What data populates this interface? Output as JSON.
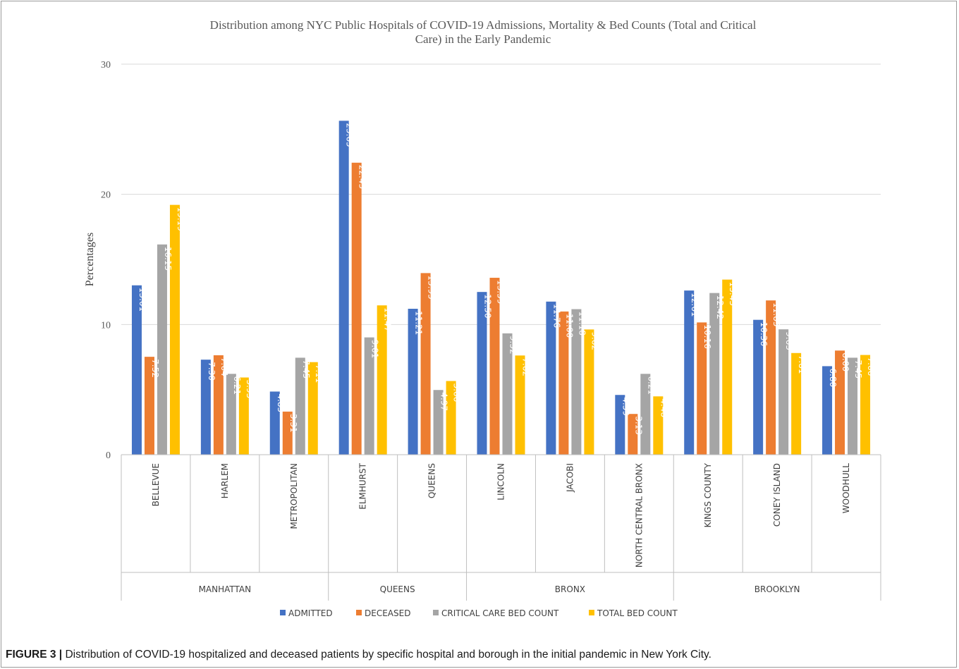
{
  "caption": {
    "figure_label": "FIGURE 3 |",
    "text": "Distribution of COVID-19 hospitalized and deceased patients by specific hospital and borough in the initial pandemic in New York City."
  },
  "chart_data": {
    "type": "bar",
    "title_lines": [
      "Distribution among NYC Public Hospitals of COVID-19 Admissions, Mortality & Bed Counts (Total and Critical",
      "Care) in the Early Pandemic"
    ],
    "ylabel": "Percentages",
    "xlabel": "",
    "ylim": [
      0,
      30
    ],
    "yticks": [
      0,
      10,
      20,
      30
    ],
    "grid": true,
    "legend_position": "bottom",
    "categories": [
      "BELLEVUE",
      "HARLEM",
      "METROPOLITAN",
      "ELMHURST",
      "QUEENS",
      "LINCOLN",
      "JACOBI",
      "NORTH CENTRAL BRONX",
      "KINGS COUNTY",
      "CONEY ISLAND",
      "WOODHULL"
    ],
    "groups": [
      {
        "name": "MANHATTAN",
        "count": 3
      },
      {
        "name": "QUEENS",
        "count": 2
      },
      {
        "name": "BRONX",
        "count": 3
      },
      {
        "name": "BROOKLYN",
        "count": 3
      }
    ],
    "series": [
      {
        "name": "ADMITTED",
        "color": "#4472C4",
        "values": [
          13.01,
          7.3,
          4.85,
          25.65,
          11.21,
          12.5,
          11.76,
          4.59,
          12.61,
          10.36,
          6.8
        ],
        "labels": [
          "13.01",
          "7.30",
          "4.85",
          "25.65",
          "11.21",
          "12.50",
          "11.76",
          "4.59",
          "12.61",
          "10.36",
          "6.80"
        ]
      },
      {
        "name": "DECEASED",
        "color": "#ED7D31",
        "values": [
          7.52,
          7.64,
          3.31,
          22.43,
          13.95,
          13.59,
          11.0,
          3.13,
          10.16,
          11.85,
          8.0
        ],
        "labels": [
          "7.52",
          "7.64",
          "3.31",
          "22.43",
          "13.95",
          "13.59",
          "11.00",
          "3.13",
          "10.16",
          "11.85",
          "8.00"
        ]
      },
      {
        "name": "CRITICAL CARE BED COUNT",
        "color": "#A5A5A5",
        "values": [
          16.15,
          6.21,
          7.45,
          9.01,
          4.97,
          9.32,
          11.18,
          6.21,
          12.42,
          9.63,
          7.45
        ],
        "labels": [
          "16.15",
          "6.21",
          "7.45",
          "9.01",
          "4.97",
          "9.32",
          "11.18",
          "6.21",
          "12.42",
          "9.63",
          "7.45"
        ]
      },
      {
        "name": "TOTAL BED COUNT",
        "color": "#FFC000",
        "values": [
          19.19,
          5.93,
          7.11,
          11.47,
          5.66,
          7.62,
          9.62,
          4.48,
          13.45,
          7.81,
          7.66
        ],
        "labels": [
          "19.19",
          "5.93",
          "7.11",
          "11.47",
          "5.66",
          "7.62",
          "9.62",
          "4.48",
          "13.45",
          "7.81",
          "7.66"
        ]
      }
    ]
  }
}
